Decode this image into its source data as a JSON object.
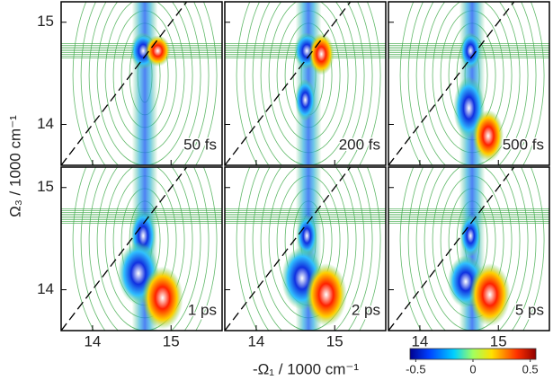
{
  "chart_data": [
    {
      "type": "contour",
      "label": "50 fs",
      "xlim": [
        13.6,
        15.65
      ],
      "ylim": [
        13.6,
        15.2
      ],
      "xticks": [
        14,
        15
      ],
      "yticks": [
        14,
        15
      ]
    },
    {
      "type": "contour",
      "label": "200 fs",
      "xlim": [
        13.6,
        15.65
      ],
      "ylim": [
        13.6,
        15.2
      ],
      "xticks": [
        14,
        15
      ],
      "yticks": [
        14,
        15
      ]
    },
    {
      "type": "contour",
      "label": "500 fs",
      "xlim": [
        13.6,
        15.65
      ],
      "ylim": [
        13.6,
        15.2
      ],
      "xticks": [
        14,
        15
      ],
      "yticks": [
        14,
        15
      ]
    },
    {
      "type": "contour",
      "label": "1 ps",
      "xlim": [
        13.6,
        15.65
      ],
      "ylim": [
        13.6,
        15.2
      ],
      "xticks": [
        14,
        15
      ],
      "yticks": [
        14,
        15
      ]
    },
    {
      "type": "contour",
      "label": "2 ps",
      "xlim": [
        13.6,
        15.65
      ],
      "ylim": [
        13.6,
        15.2
      ],
      "xticks": [
        14,
        15
      ],
      "yticks": [
        14,
        15
      ]
    },
    {
      "type": "contour",
      "label": "5 ps",
      "xlim": [
        13.6,
        15.65
      ],
      "ylim": [
        13.6,
        15.2
      ],
      "xticks": [
        14,
        15
      ],
      "yticks": [
        14,
        15
      ]
    }
  ],
  "x_label": "-Ω₁ / 1000 cm⁻¹",
  "y_label": "Ω₃ / 1000 cm⁻¹",
  "colorbar": {
    "lim": [
      -0.55,
      0.55
    ],
    "ticks": [
      -0.5,
      0,
      0.5
    ]
  }
}
